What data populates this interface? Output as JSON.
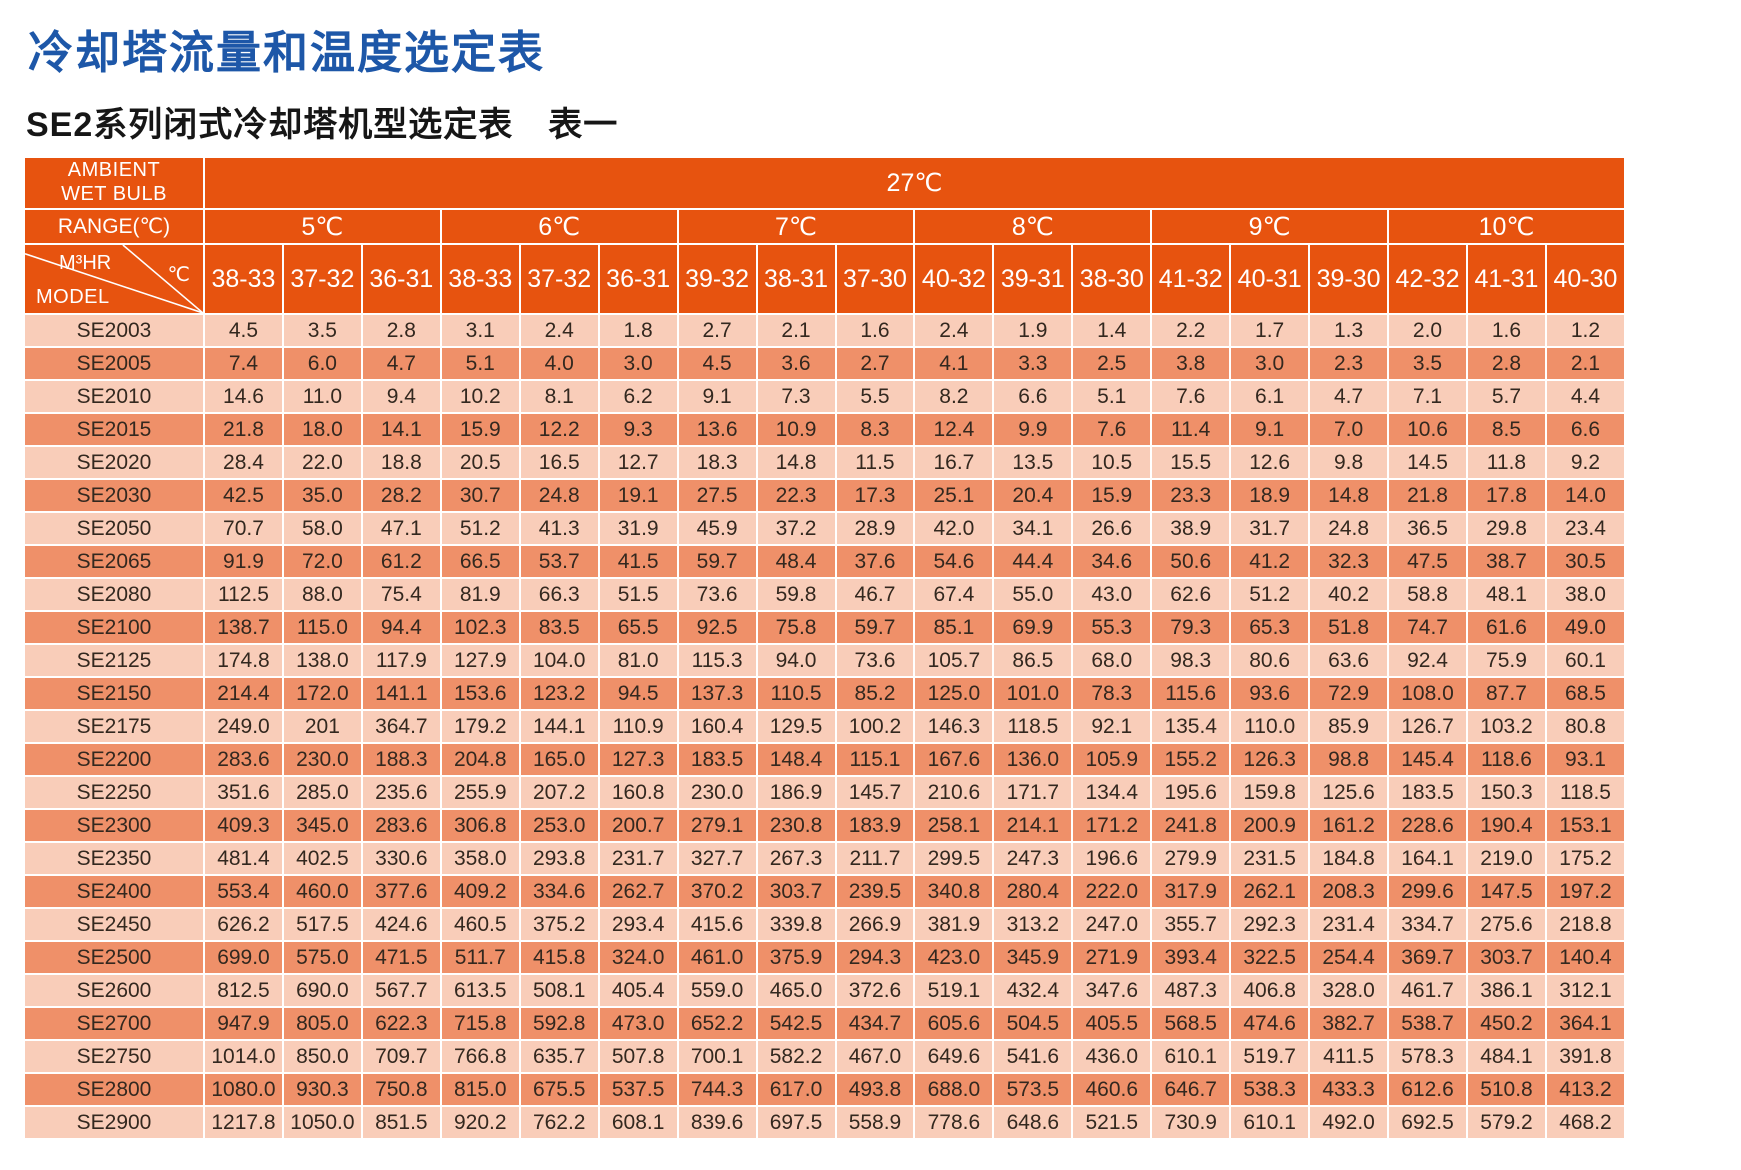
{
  "page": {
    "title": "冷却塔流量和温度选定表",
    "subtitle": "SE2系列闭式冷却塔机型选定表　表一"
  },
  "colors": {
    "title_blue": "#1d57a8",
    "subtitle_black": "#161616",
    "header_orange": "#e7530f",
    "row_light": "#f9cdb9",
    "row_dark": "#ef9069",
    "grid_white": "#ffffff",
    "value_text": "#33281f"
  },
  "table": {
    "ambient_wet_bulb_line1": "AMBIENT",
    "ambient_wet_bulb_line2": "WET BULB",
    "ambient_temp": "27℃",
    "range_label": "RANGE(℃)",
    "range_groups": [
      "5℃",
      "6℃",
      "7℃",
      "8℃",
      "9℃",
      "10℃"
    ],
    "corner": {
      "flow_label": "M³HR",
      "temp_label": "℃",
      "model_label": "MODEL"
    },
    "column_headers": [
      "38-33",
      "37-32",
      "36-31",
      "38-33",
      "37-32",
      "36-31",
      "39-32",
      "38-31",
      "37-30",
      "40-32",
      "39-31",
      "38-30",
      "41-32",
      "40-31",
      "39-30",
      "42-32",
      "41-31",
      "40-30"
    ],
    "rows": [
      {
        "model": "SE2003",
        "values": [
          "4.5",
          "3.5",
          "2.8",
          "3.1",
          "2.4",
          "1.8",
          "2.7",
          "2.1",
          "1.6",
          "2.4",
          "1.9",
          "1.4",
          "2.2",
          "1.7",
          "1.3",
          "2.0",
          "1.6",
          "1.2"
        ]
      },
      {
        "model": "SE2005",
        "values": [
          "7.4",
          "6.0",
          "4.7",
          "5.1",
          "4.0",
          "3.0",
          "4.5",
          "3.6",
          "2.7",
          "4.1",
          "3.3",
          "2.5",
          "3.8",
          "3.0",
          "2.3",
          "3.5",
          "2.8",
          "2.1"
        ]
      },
      {
        "model": "SE2010",
        "values": [
          "14.6",
          "11.0",
          "9.4",
          "10.2",
          "8.1",
          "6.2",
          "9.1",
          "7.3",
          "5.5",
          "8.2",
          "6.6",
          "5.1",
          "7.6",
          "6.1",
          "4.7",
          "7.1",
          "5.7",
          "4.4"
        ]
      },
      {
        "model": "SE2015",
        "values": [
          "21.8",
          "18.0",
          "14.1",
          "15.9",
          "12.2",
          "9.3",
          "13.6",
          "10.9",
          "8.3",
          "12.4",
          "9.9",
          "7.6",
          "11.4",
          "9.1",
          "7.0",
          "10.6",
          "8.5",
          "6.6"
        ]
      },
      {
        "model": "SE2020",
        "values": [
          "28.4",
          "22.0",
          "18.8",
          "20.5",
          "16.5",
          "12.7",
          "18.3",
          "14.8",
          "11.5",
          "16.7",
          "13.5",
          "10.5",
          "15.5",
          "12.6",
          "9.8",
          "14.5",
          "11.8",
          "9.2"
        ]
      },
      {
        "model": "SE2030",
        "values": [
          "42.5",
          "35.0",
          "28.2",
          "30.7",
          "24.8",
          "19.1",
          "27.5",
          "22.3",
          "17.3",
          "25.1",
          "20.4",
          "15.9",
          "23.3",
          "18.9",
          "14.8",
          "21.8",
          "17.8",
          "14.0"
        ]
      },
      {
        "model": "SE2050",
        "values": [
          "70.7",
          "58.0",
          "47.1",
          "51.2",
          "41.3",
          "31.9",
          "45.9",
          "37.2",
          "28.9",
          "42.0",
          "34.1",
          "26.6",
          "38.9",
          "31.7",
          "24.8",
          "36.5",
          "29.8",
          "23.4"
        ]
      },
      {
        "model": "SE2065",
        "values": [
          "91.9",
          "72.0",
          "61.2",
          "66.5",
          "53.7",
          "41.5",
          "59.7",
          "48.4",
          "37.6",
          "54.6",
          "44.4",
          "34.6",
          "50.6",
          "41.2",
          "32.3",
          "47.5",
          "38.7",
          "30.5"
        ]
      },
      {
        "model": "SE2080",
        "values": [
          "112.5",
          "88.0",
          "75.4",
          "81.9",
          "66.3",
          "51.5",
          "73.6",
          "59.8",
          "46.7",
          "67.4",
          "55.0",
          "43.0",
          "62.6",
          "51.2",
          "40.2",
          "58.8",
          "48.1",
          "38.0"
        ]
      },
      {
        "model": "SE2100",
        "values": [
          "138.7",
          "115.0",
          "94.4",
          "102.3",
          "83.5",
          "65.5",
          "92.5",
          "75.8",
          "59.7",
          "85.1",
          "69.9",
          "55.3",
          "79.3",
          "65.3",
          "51.8",
          "74.7",
          "61.6",
          "49.0"
        ]
      },
      {
        "model": "SE2125",
        "values": [
          "174.8",
          "138.0",
          "117.9",
          "127.9",
          "104.0",
          "81.0",
          "115.3",
          "94.0",
          "73.6",
          "105.7",
          "86.5",
          "68.0",
          "98.3",
          "80.6",
          "63.6",
          "92.4",
          "75.9",
          "60.1"
        ]
      },
      {
        "model": "SE2150",
        "values": [
          "214.4",
          "172.0",
          "141.1",
          "153.6",
          "123.2",
          "94.5",
          "137.3",
          "110.5",
          "85.2",
          "125.0",
          "101.0",
          "78.3",
          "115.6",
          "93.6",
          "72.9",
          "108.0",
          "87.7",
          "68.5"
        ]
      },
      {
        "model": "SE2175",
        "values": [
          "249.0",
          "201",
          "364.7",
          "179.2",
          "144.1",
          "110.9",
          "160.4",
          "129.5",
          "100.2",
          "146.3",
          "118.5",
          "92.1",
          "135.4",
          "110.0",
          "85.9",
          "126.7",
          "103.2",
          "80.8"
        ]
      },
      {
        "model": "SE2200",
        "values": [
          "283.6",
          "230.0",
          "188.3",
          "204.8",
          "165.0",
          "127.3",
          "183.5",
          "148.4",
          "115.1",
          "167.6",
          "136.0",
          "105.9",
          "155.2",
          "126.3",
          "98.8",
          "145.4",
          "118.6",
          "93.1"
        ]
      },
      {
        "model": "SE2250",
        "values": [
          "351.6",
          "285.0",
          "235.6",
          "255.9",
          "207.2",
          "160.8",
          "230.0",
          "186.9",
          "145.7",
          "210.6",
          "171.7",
          "134.4",
          "195.6",
          "159.8",
          "125.6",
          "183.5",
          "150.3",
          "118.5"
        ]
      },
      {
        "model": "SE2300",
        "values": [
          "409.3",
          "345.0",
          "283.6",
          "306.8",
          "253.0",
          "200.7",
          "279.1",
          "230.8",
          "183.9",
          "258.1",
          "214.1",
          "171.2",
          "241.8",
          "200.9",
          "161.2",
          "228.6",
          "190.4",
          "153.1"
        ]
      },
      {
        "model": "SE2350",
        "values": [
          "481.4",
          "402.5",
          "330.6",
          "358.0",
          "293.8",
          "231.7",
          "327.7",
          "267.3",
          "211.7",
          "299.5",
          "247.3",
          "196.6",
          "279.9",
          "231.5",
          "184.8",
          "164.1",
          "219.0",
          "175.2"
        ]
      },
      {
        "model": "SE2400",
        "values": [
          "553.4",
          "460.0",
          "377.6",
          "409.2",
          "334.6",
          "262.7",
          "370.2",
          "303.7",
          "239.5",
          "340.8",
          "280.4",
          "222.0",
          "317.9",
          "262.1",
          "208.3",
          "299.6",
          "147.5",
          "197.2"
        ]
      },
      {
        "model": "SE2450",
        "values": [
          "626.2",
          "517.5",
          "424.6",
          "460.5",
          "375.2",
          "293.4",
          "415.6",
          "339.8",
          "266.9",
          "381.9",
          "313.2",
          "247.0",
          "355.7",
          "292.3",
          "231.4",
          "334.7",
          "275.6",
          "218.8"
        ]
      },
      {
        "model": "SE2500",
        "values": [
          "699.0",
          "575.0",
          "471.5",
          "511.7",
          "415.8",
          "324.0",
          "461.0",
          "375.9",
          "294.3",
          "423.0",
          "345.9",
          "271.9",
          "393.4",
          "322.5",
          "254.4",
          "369.7",
          "303.7",
          "140.4"
        ]
      },
      {
        "model": "SE2600",
        "values": [
          "812.5",
          "690.0",
          "567.7",
          "613.5",
          "508.1",
          "405.4",
          "559.0",
          "465.0",
          "372.6",
          "519.1",
          "432.4",
          "347.6",
          "487.3",
          "406.8",
          "328.0",
          "461.7",
          "386.1",
          "312.1"
        ]
      },
      {
        "model": "SE2700",
        "values": [
          "947.9",
          "805.0",
          "622.3",
          "715.8",
          "592.8",
          "473.0",
          "652.2",
          "542.5",
          "434.7",
          "605.6",
          "504.5",
          "405.5",
          "568.5",
          "474.6",
          "382.7",
          "538.7",
          "450.2",
          "364.1"
        ]
      },
      {
        "model": "SE2750",
        "values": [
          "1014.0",
          "850.0",
          "709.7",
          "766.8",
          "635.7",
          "507.8",
          "700.1",
          "582.2",
          "467.0",
          "649.6",
          "541.6",
          "436.0",
          "610.1",
          "519.7",
          "411.5",
          "578.3",
          "484.1",
          "391.8"
        ]
      },
      {
        "model": "SE2800",
        "values": [
          "1080.0",
          "930.3",
          "750.8",
          "815.0",
          "675.5",
          "537.5",
          "744.3",
          "617.0",
          "493.8",
          "688.0",
          "573.5",
          "460.6",
          "646.7",
          "538.3",
          "433.3",
          "612.6",
          "510.8",
          "413.2"
        ]
      },
      {
        "model": "SE2900",
        "values": [
          "1217.8",
          "1050.0",
          "851.5",
          "920.2",
          "762.2",
          "608.1",
          "839.6",
          "697.5",
          "558.9",
          "778.6",
          "648.6",
          "521.5",
          "730.9",
          "610.1",
          "492.0",
          "692.5",
          "579.2",
          "468.2"
        ]
      }
    ]
  }
}
